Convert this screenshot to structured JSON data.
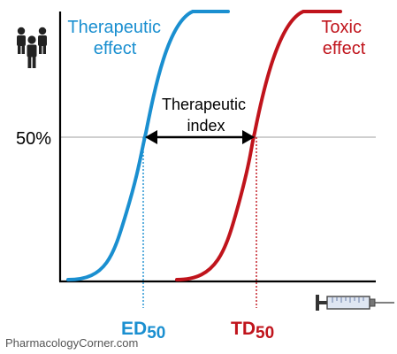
{
  "diagram": {
    "effect_label": [
      "Therapeutic",
      "effect"
    ],
    "toxic_label": [
      "Toxic",
      "effect"
    ],
    "index_label": [
      "Therapeutic",
      "index"
    ],
    "fifty_label": "50%",
    "ed_main": "ED",
    "ed_sub": "50",
    "td_main": "TD",
    "td_sub": "50",
    "watermark": "PharmacologyCorner.com",
    "colors": {
      "effect": "#1a8fd0",
      "toxic": "#c0141c",
      "axis": "#000000",
      "fifty_line": "#bfbfbf",
      "text": "#000000",
      "watermark": "#555555"
    },
    "icons": {
      "people": "people-icon",
      "syringe": "syringe-icon"
    }
  }
}
